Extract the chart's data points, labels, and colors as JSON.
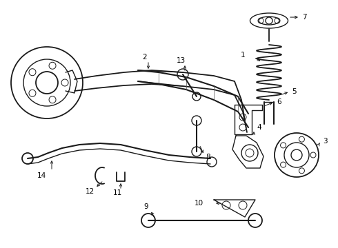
{
  "background_color": "#f5f5f0",
  "line_color": "#1a1a1a",
  "text_color": "#000000",
  "fig_width": 4.9,
  "fig_height": 3.6,
  "dpi": 100,
  "bg_gray": "#e8e8e2",
  "label_fontsize": 7.5
}
